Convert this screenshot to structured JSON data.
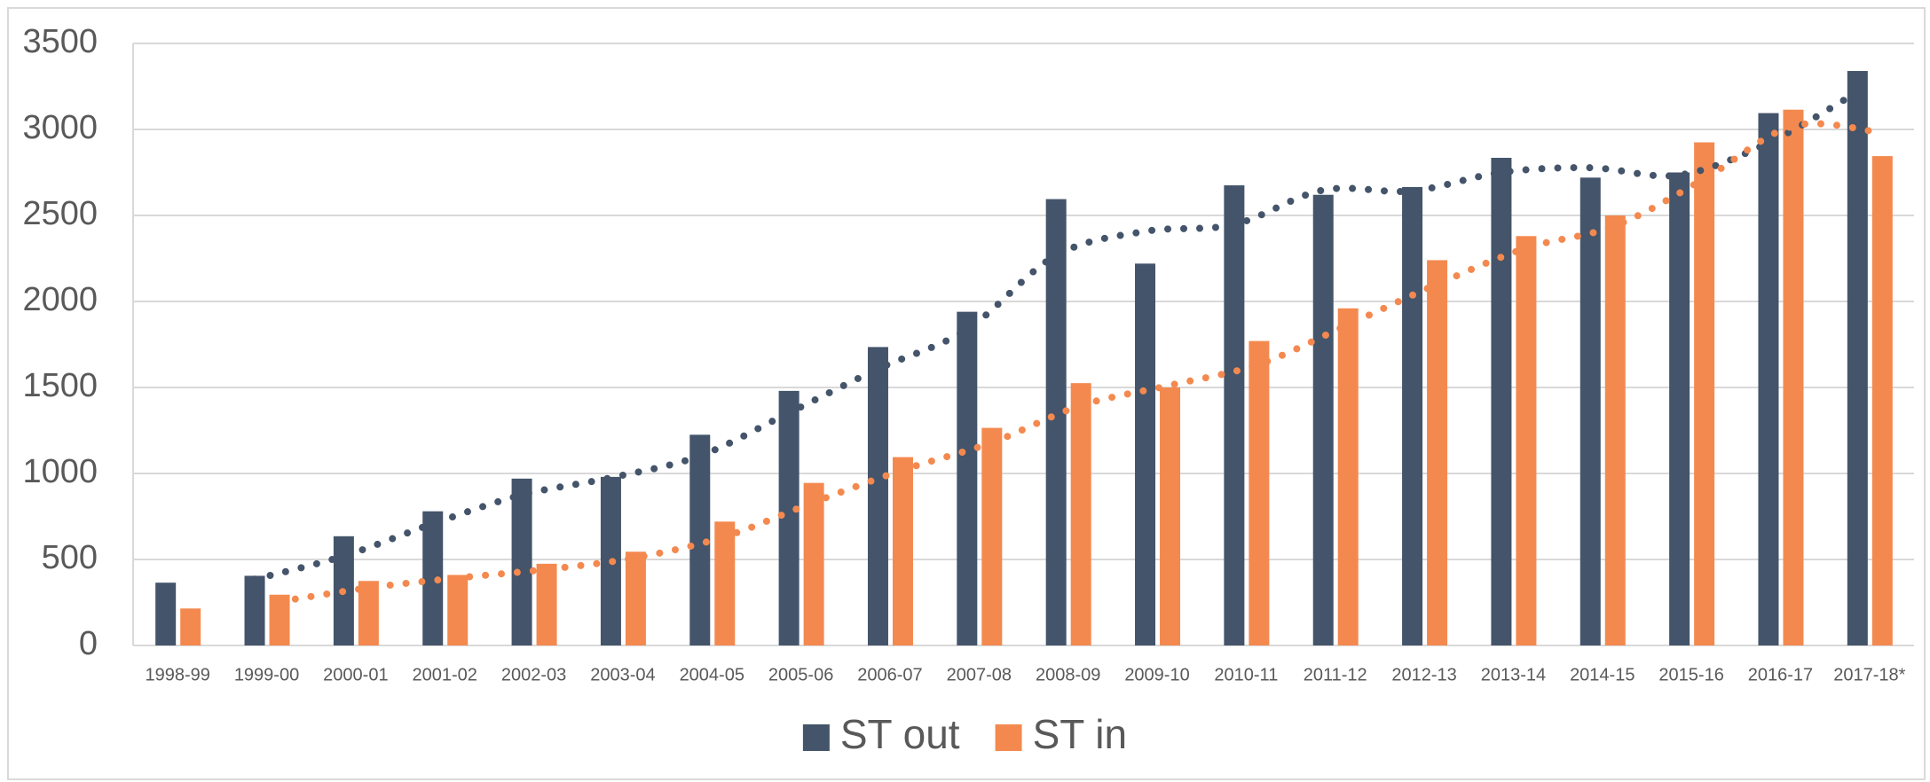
{
  "chart_data": {
    "type": "bar",
    "categories": [
      "1998-99",
      "1999-00",
      "2000-01",
      "2001-02",
      "2002-03",
      "2003-04",
      "2004-05",
      "2005-06",
      "2006-07",
      "2007-08",
      "2008-09",
      "2009-10",
      "2010-11",
      "2011-12",
      "2012-13",
      "2013-14",
      "2014-15",
      "2015-16",
      "2016-17",
      "2017-18*"
    ],
    "series": [
      {
        "name": "ST out",
        "color": "#44546a",
        "values": [
          365,
          405,
          635,
          780,
          970,
          980,
          1225,
          1480,
          1735,
          1940,
          2595,
          2220,
          2675,
          2620,
          2665,
          2835,
          2720,
          2750,
          3095,
          3340
        ]
      },
      {
        "name": "ST in",
        "color": "#f4894f",
        "values": [
          215,
          295,
          375,
          410,
          475,
          545,
          720,
          945,
          1095,
          1265,
          1525,
          1500,
          1770,
          1960,
          2240,
          2380,
          2500,
          2925,
          3115,
          2845
        ]
      }
    ],
    "trendline": {
      "type": "moving_average",
      "period": 2
    },
    "ylim": [
      0,
      3500
    ],
    "yticks": [
      0,
      500,
      1000,
      1500,
      2000,
      2500,
      3000,
      3500
    ],
    "grid": true,
    "legend": "bottom"
  }
}
